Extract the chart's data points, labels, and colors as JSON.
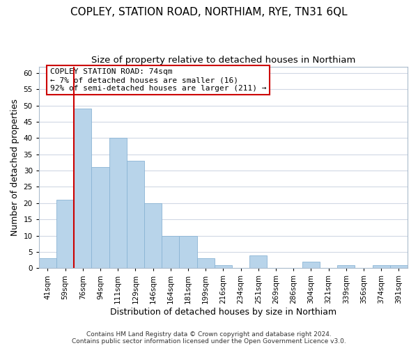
{
  "title": "COPLEY, STATION ROAD, NORTHIAM, RYE, TN31 6QL",
  "subtitle": "Size of property relative to detached houses in Northiam",
  "xlabel": "Distribution of detached houses by size in Northiam",
  "ylabel": "Number of detached properties",
  "footer_line1": "Contains HM Land Registry data © Crown copyright and database right 2024.",
  "footer_line2": "Contains public sector information licensed under the Open Government Licence v3.0.",
  "bin_labels": [
    "41sqm",
    "59sqm",
    "76sqm",
    "94sqm",
    "111sqm",
    "129sqm",
    "146sqm",
    "164sqm",
    "181sqm",
    "199sqm",
    "216sqm",
    "234sqm",
    "251sqm",
    "269sqm",
    "286sqm",
    "304sqm",
    "321sqm",
    "339sqm",
    "356sqm",
    "374sqm",
    "391sqm"
  ],
  "bar_heights": [
    3,
    21,
    49,
    31,
    40,
    33,
    20,
    10,
    10,
    3,
    1,
    0,
    4,
    0,
    0,
    2,
    0,
    1,
    0,
    1,
    1
  ],
  "bar_color": "#b8d4ea",
  "bar_edge_color": "#8ab4d4",
  "highlight_color": "#cc0000",
  "ylim": [
    0,
    62
  ],
  "yticks": [
    0,
    5,
    10,
    15,
    20,
    25,
    30,
    35,
    40,
    45,
    50,
    55,
    60
  ],
  "annotation_title": "COPLEY STATION ROAD: 74sqm",
  "annotation_line1": "← 7% of detached houses are smaller (16)",
  "annotation_line2": "92% of semi-detached houses are larger (211) →",
  "annotation_box_color": "#ffffff",
  "annotation_box_edge": "#cc0000",
  "background_color": "#ffffff",
  "plot_background": "#ffffff",
  "grid_color": "#d0d8e4",
  "title_fontsize": 11,
  "subtitle_fontsize": 9.5,
  "axis_label_fontsize": 9,
  "tick_fontsize": 7.5,
  "footer_fontsize": 6.5,
  "annotation_fontsize": 8,
  "highlight_bin_index": 2
}
